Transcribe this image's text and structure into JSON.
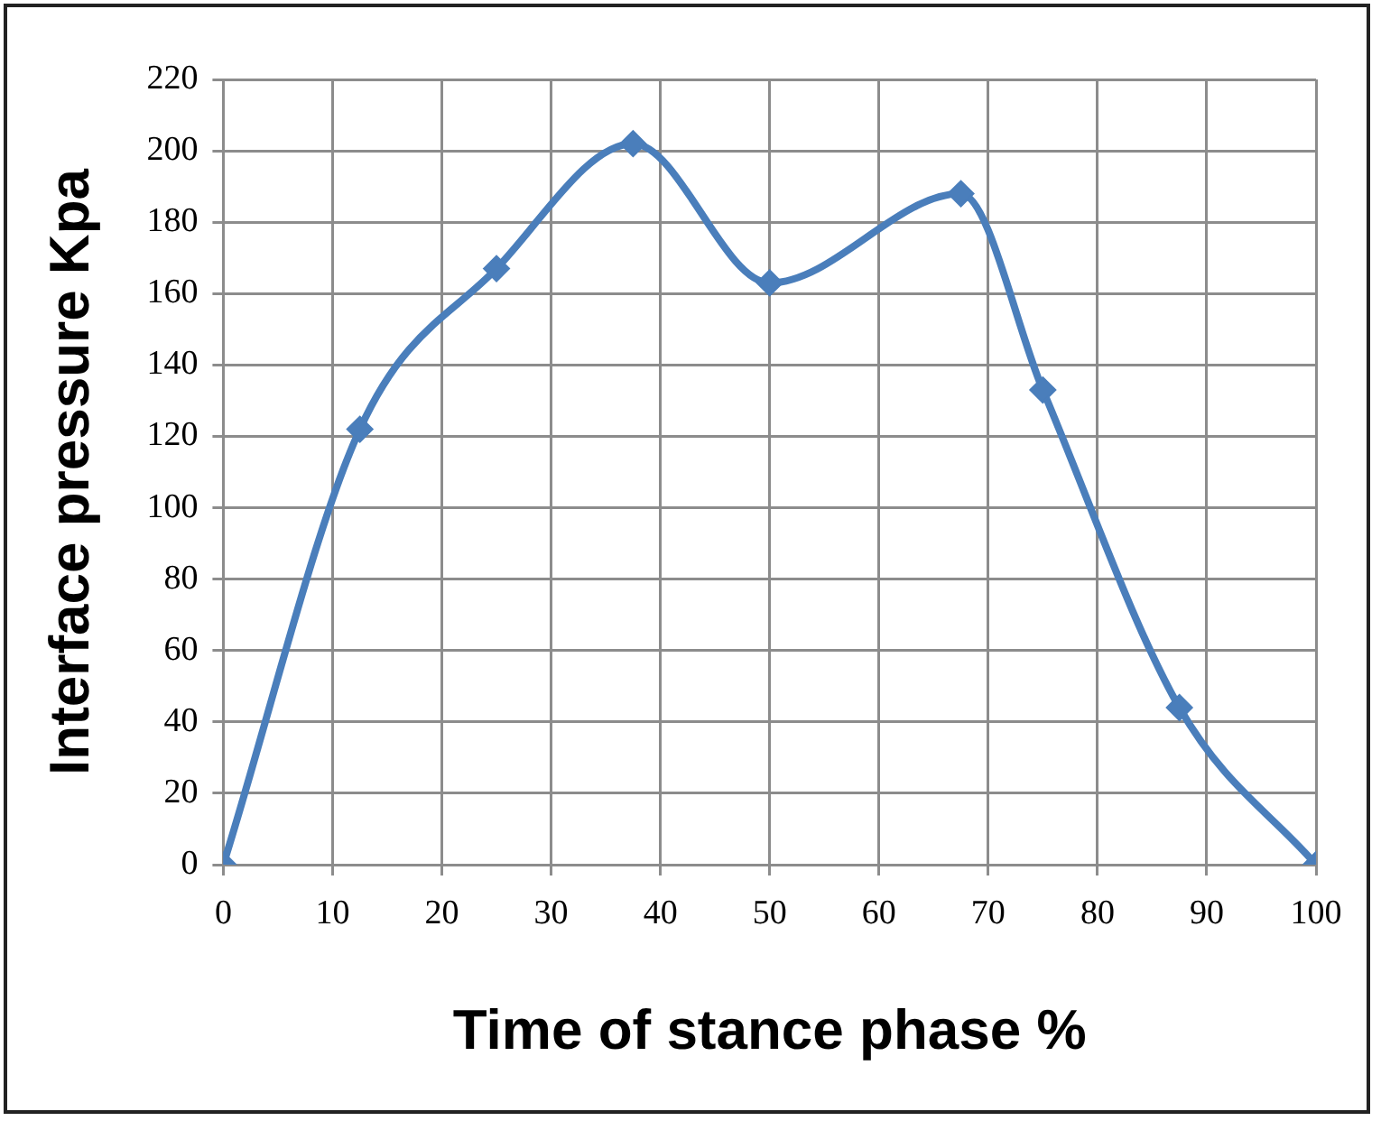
{
  "chart_data": {
    "type": "line",
    "xlabel": "Time of stance phase %",
    "ylabel": "Interface pressure Kpa",
    "x": [
      0,
      12.5,
      25,
      37.5,
      50,
      67.5,
      75,
      87.5,
      100
    ],
    "series": [
      {
        "color": "#4a7ebb",
        "values": [
          0,
          122,
          167,
          202,
          163,
          188,
          133,
          44,
          0
        ]
      }
    ],
    "xlim": [
      0,
      100
    ],
    "xticks": [
      0,
      10,
      20,
      30,
      40,
      50,
      60,
      70,
      80,
      90,
      100
    ],
    "ylim": [
      0,
      220
    ],
    "yticks": [
      0,
      20,
      40,
      60,
      80,
      100,
      120,
      140,
      160,
      180,
      200,
      220
    ],
    "grid": true,
    "legend": false,
    "marker": "diamond",
    "line_style": "solid"
  }
}
